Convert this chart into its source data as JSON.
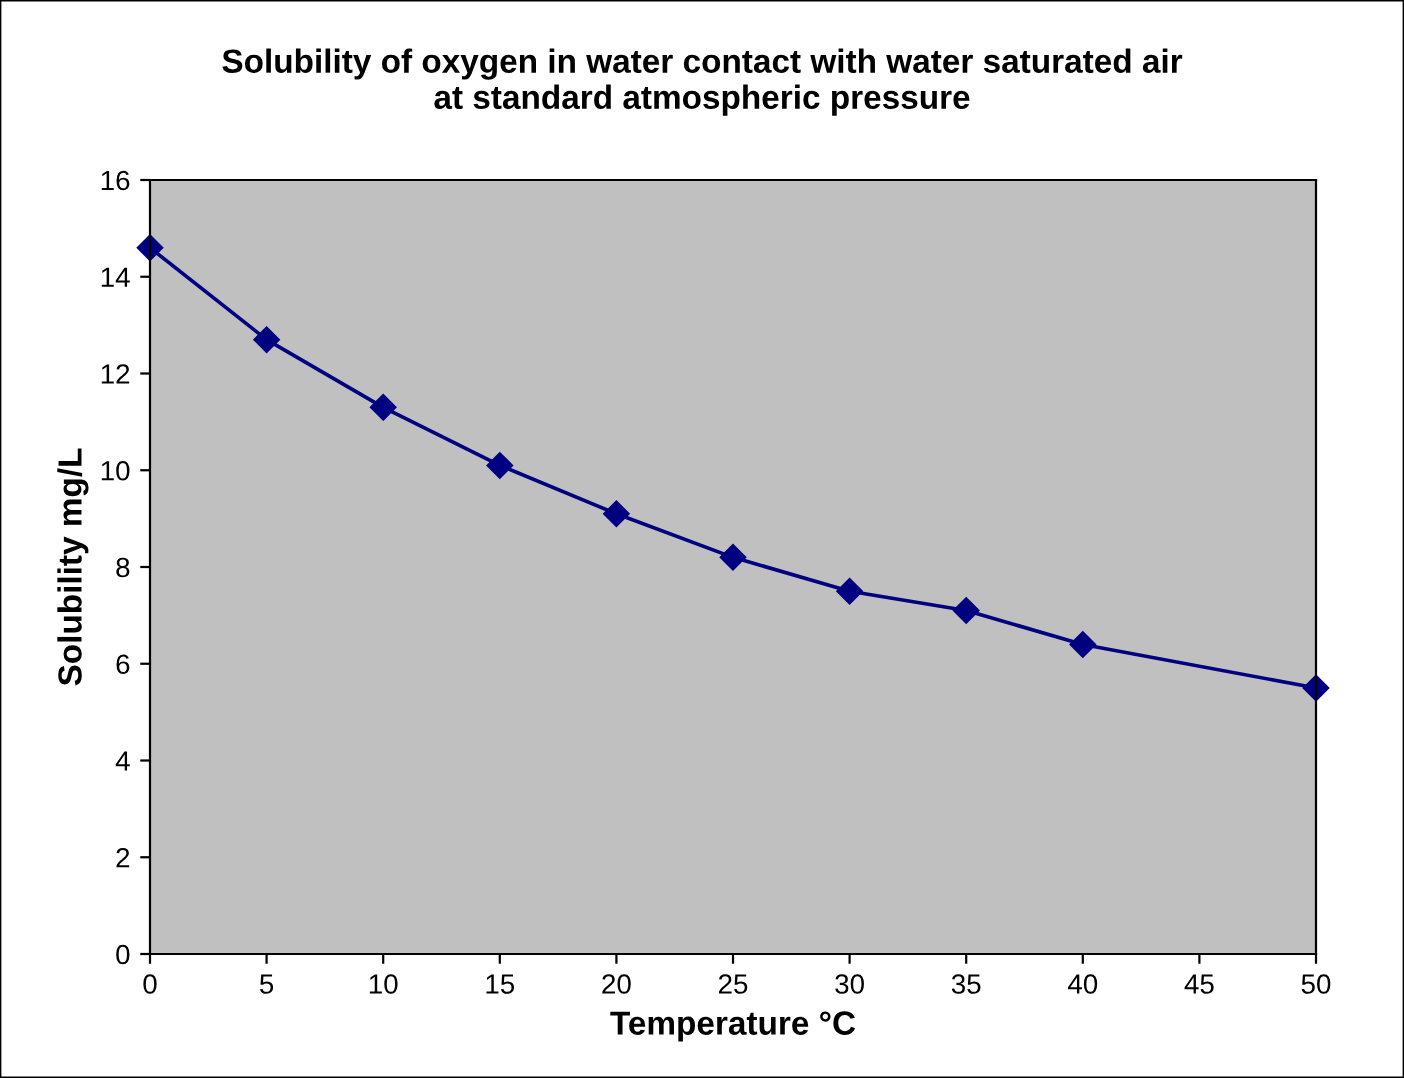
{
  "chart_data": {
    "type": "line",
    "title": "Solubility of oxygen in water contact with water saturated air\nat standard atmospheric pressure",
    "xlabel": "Temperature °C",
    "ylabel": "Solubility mg/L",
    "x": [
      0,
      5,
      10,
      15,
      20,
      25,
      30,
      35,
      40,
      50
    ],
    "series": [
      {
        "color": "#000080",
        "values": [
          14.6,
          12.7,
          11.3,
          10.1,
          9.1,
          8.2,
          7.5,
          7.1,
          6.4,
          5.5
        ]
      }
    ],
    "xlim": [
      0,
      50
    ],
    "xticks": [
      0,
      5,
      10,
      15,
      20,
      25,
      30,
      35,
      40,
      45,
      50
    ],
    "ylim": [
      0,
      16
    ],
    "yticks": [
      0,
      2,
      4,
      6,
      8,
      10,
      12,
      14,
      16
    ],
    "grid": false,
    "legend": false,
    "marker": "diamond",
    "line_style": "solid"
  }
}
